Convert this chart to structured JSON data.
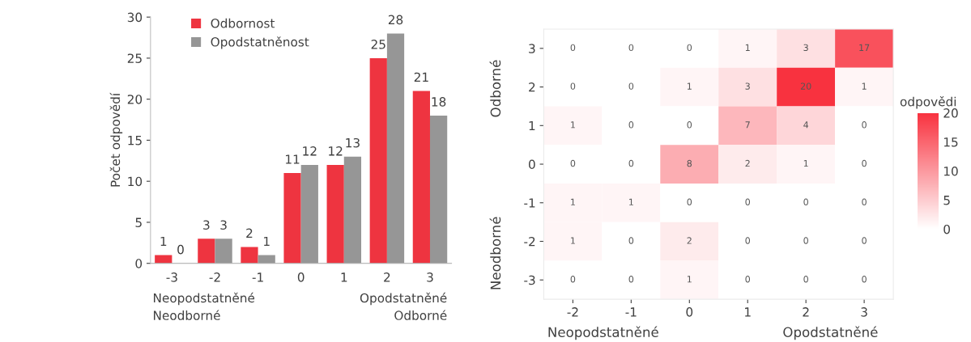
{
  "chart_data": [
    {
      "type": "bar",
      "categories": [
        "-3",
        "-2",
        "-1",
        "0",
        "1",
        "2",
        "3"
      ],
      "ylabel": "Počet odpovědí",
      "ylim": [
        0,
        30
      ],
      "yticks": [
        0,
        5,
        10,
        15,
        20,
        25,
        30
      ],
      "legend": "top left",
      "data_labels": true,
      "grid": false,
      "series": [
        {
          "name": "Odbornost",
          "color": "#ee3440",
          "values": [
            1,
            3,
            2,
            11,
            12,
            25,
            21
          ]
        },
        {
          "name": "Opodstatněnost",
          "color": "#969696",
          "values": [
            0,
            3,
            1,
            12,
            13,
            28,
            18
          ]
        }
      ],
      "annotations": [
        "Neopodstatněné",
        "Neodborné",
        "Opodstatněné",
        "Odborné"
      ]
    },
    {
      "type": "heatmap",
      "categories": [
        "-2",
        "-1",
        "0",
        "1",
        "2",
        "3"
      ],
      "y_categories": [
        "3",
        "2",
        "1",
        "0",
        "-1",
        "-2",
        "-3"
      ],
      "cells": [
        [
          0,
          0,
          0,
          1,
          3,
          17
        ],
        [
          0,
          0,
          1,
          3,
          20,
          1
        ],
        [
          1,
          0,
          0,
          7,
          4,
          0
        ],
        [
          0,
          0,
          8,
          2,
          1,
          0
        ],
        [
          1,
          1,
          0,
          0,
          0,
          0
        ],
        [
          1,
          0,
          2,
          0,
          0,
          0
        ],
        [
          0,
          0,
          1,
          0,
          0,
          0
        ]
      ],
      "colors": [
        "#ffffff",
        "#f8323f"
      ],
      "clim": [
        0,
        20
      ],
      "cticks": [
        0,
        5,
        10,
        15,
        20
      ],
      "clabel": "odpovědi",
      "data_labels": true,
      "annotations": [
        "Odborné",
        "Neodborné",
        "Neopodstatněné",
        "Opodstatněné"
      ]
    }
  ]
}
